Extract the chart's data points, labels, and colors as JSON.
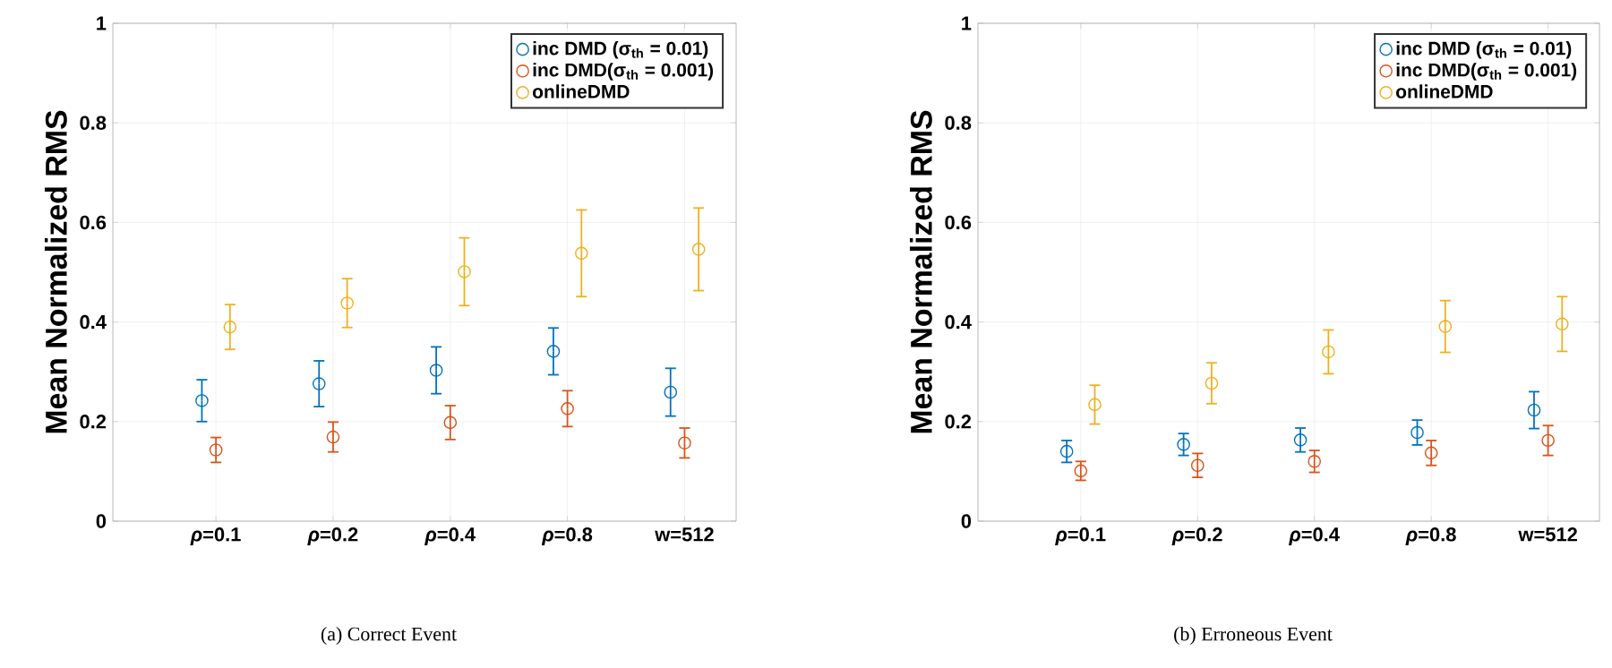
{
  "chart_data": [
    {
      "type": "scatter",
      "ylabel": "Mean Normalized RMS",
      "annotations": [
        "(a) Correct Event"
      ],
      "categories": [
        "*ρ*=0.1",
        "*ρ*=0.2",
        "*ρ*=0.4",
        "*ρ*=0.8",
        "w=512"
      ],
      "ylim": [
        0,
        1
      ],
      "yticks": [
        0,
        0.2,
        0.4,
        0.6,
        0.8,
        1
      ],
      "grid": true,
      "legend": "top right",
      "marker": "circle",
      "series": [
        {
          "name": "inc DMD (σ$_{th}$ = 0.01)",
          "color": "#0072bd",
          "values": [
            0.242,
            0.276,
            0.303,
            0.341,
            0.259
          ],
          "errors": [
            0.042,
            0.046,
            0.047,
            0.047,
            0.048
          ]
        },
        {
          "name": "inc DMD(σ$_{th}$ = 0.001)",
          "color": "#d95319",
          "values": [
            0.143,
            0.169,
            0.198,
            0.226,
            0.157
          ],
          "errors": [
            0.025,
            0.03,
            0.034,
            0.036,
            0.03
          ]
        },
        {
          "name": "onlineDMD",
          "color": "#edb120",
          "values": [
            0.39,
            0.438,
            0.501,
            0.538,
            0.546
          ],
          "errors": [
            0.045,
            0.049,
            0.068,
            0.087,
            0.083
          ]
        }
      ]
    },
    {
      "type": "scatter",
      "ylabel": "Mean Normalized RMS",
      "annotations": [
        "(b) Erroneous Event"
      ],
      "categories": [
        "*ρ*=0.1",
        "*ρ*=0.2",
        "*ρ*=0.4",
        "*ρ*=0.8",
        "w=512"
      ],
      "ylim": [
        0,
        1
      ],
      "yticks": [
        0,
        0.2,
        0.4,
        0.6,
        0.8,
        1
      ],
      "grid": true,
      "legend": "top right",
      "marker": "circle",
      "series": [
        {
          "name": "inc DMD (σ$_{th}$ = 0.01)",
          "color": "#0072bd",
          "values": [
            0.14,
            0.154,
            0.163,
            0.178,
            0.223
          ],
          "errors": [
            0.022,
            0.022,
            0.024,
            0.025,
            0.037
          ]
        },
        {
          "name": "inc DMD(σ$_{th}$ = 0.001)",
          "color": "#d95319",
          "values": [
            0.101,
            0.112,
            0.12,
            0.137,
            0.162
          ],
          "errors": [
            0.019,
            0.024,
            0.022,
            0.025,
            0.03
          ]
        },
        {
          "name": "onlineDMD",
          "color": "#edb120",
          "values": [
            0.234,
            0.277,
            0.34,
            0.391,
            0.396
          ],
          "errors": [
            0.039,
            0.041,
            0.044,
            0.052,
            0.055
          ]
        }
      ]
    }
  ]
}
